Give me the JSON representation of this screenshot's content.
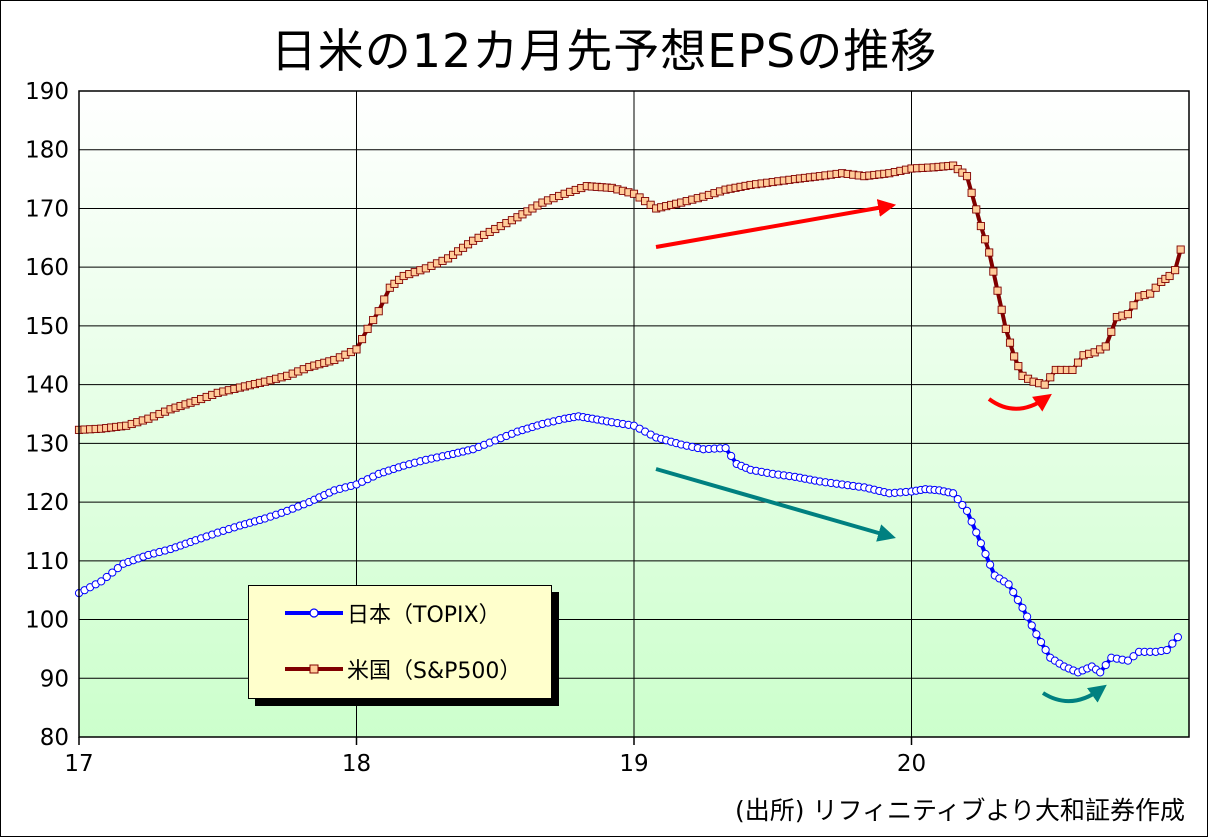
{
  "title": "日米の12カ月先予想EPSの推移",
  "source": "(出所) リフィニティブより大和証券作成",
  "colors": {
    "japan": "#0000ff",
    "us": "#800000",
    "us_marker_fill": "#ffcc99",
    "japan_marker_fill": "#ffffff",
    "plot_top": "#ffffff",
    "plot_bottom": "#ccffcc",
    "legend_bg": "#ffffcc",
    "arrow_red": "#ff0000",
    "arrow_teal": "#008080"
  },
  "chart_data": {
    "type": "line",
    "title": "日米の12カ月先予想EPSの推移",
    "xlabel": "",
    "ylabel": "",
    "x_ticks": [
      "17",
      "18",
      "19",
      "20"
    ],
    "x_range": [
      2017.0,
      2021.0
    ],
    "ylim": [
      80,
      190
    ],
    "y_ticks": [
      80,
      90,
      100,
      110,
      120,
      130,
      140,
      150,
      160,
      170,
      180,
      190
    ],
    "grid": "both",
    "legend_position": "bottom-left",
    "series": [
      {
        "name": "日本（TOPIX）",
        "points": [
          [
            2017.0,
            104.5
          ],
          [
            2017.08,
            106.5
          ],
          [
            2017.16,
            109.5
          ],
          [
            2017.25,
            111.0
          ],
          [
            2017.33,
            112.0
          ],
          [
            2017.42,
            113.5
          ],
          [
            2017.5,
            114.8
          ],
          [
            2017.58,
            116.0
          ],
          [
            2017.67,
            117.2
          ],
          [
            2017.75,
            118.5
          ],
          [
            2017.83,
            120.0
          ],
          [
            2017.92,
            122.0
          ],
          [
            2018.0,
            123.0
          ],
          [
            2018.08,
            124.8
          ],
          [
            2018.17,
            126.2
          ],
          [
            2018.25,
            127.2
          ],
          [
            2018.33,
            128.0
          ],
          [
            2018.42,
            129.0
          ],
          [
            2018.5,
            130.5
          ],
          [
            2018.58,
            132.0
          ],
          [
            2018.67,
            133.3
          ],
          [
            2018.75,
            134.2
          ],
          [
            2018.8,
            134.6
          ],
          [
            2018.85,
            134.2
          ],
          [
            2018.92,
            133.6
          ],
          [
            2019.0,
            133.0
          ],
          [
            2019.08,
            131.0
          ],
          [
            2019.17,
            129.8
          ],
          [
            2019.25,
            129.0
          ],
          [
            2019.33,
            129.2
          ],
          [
            2019.37,
            126.5
          ],
          [
            2019.42,
            125.5
          ],
          [
            2019.5,
            124.8
          ],
          [
            2019.58,
            124.3
          ],
          [
            2019.67,
            123.5
          ],
          [
            2019.75,
            123.0
          ],
          [
            2019.83,
            122.5
          ],
          [
            2019.92,
            121.5
          ],
          [
            2020.0,
            121.8
          ],
          [
            2020.05,
            122.2
          ],
          [
            2020.1,
            122.0
          ],
          [
            2020.15,
            121.5
          ],
          [
            2020.2,
            118.5
          ],
          [
            2020.25,
            113.0
          ],
          [
            2020.3,
            107.5
          ],
          [
            2020.35,
            106.0
          ],
          [
            2020.4,
            102.0
          ],
          [
            2020.45,
            97.5
          ],
          [
            2020.5,
            93.5
          ],
          [
            2020.55,
            92.0
          ],
          [
            2020.6,
            91.0
          ],
          [
            2020.65,
            92.0
          ],
          [
            2020.68,
            91.0
          ],
          [
            2020.72,
            93.5
          ],
          [
            2020.78,
            93.0
          ],
          [
            2020.82,
            94.5
          ],
          [
            2020.88,
            94.5
          ],
          [
            2020.92,
            94.8
          ],
          [
            2020.96,
            97.0
          ]
        ]
      },
      {
        "name": "米国（S&P500）",
        "points": [
          [
            2017.0,
            132.3
          ],
          [
            2017.08,
            132.5
          ],
          [
            2017.17,
            133.0
          ],
          [
            2017.25,
            134.2
          ],
          [
            2017.33,
            135.8
          ],
          [
            2017.42,
            137.2
          ],
          [
            2017.5,
            138.6
          ],
          [
            2017.58,
            139.5
          ],
          [
            2017.67,
            140.5
          ],
          [
            2017.75,
            141.5
          ],
          [
            2017.83,
            143.0
          ],
          [
            2017.92,
            144.2
          ],
          [
            2018.0,
            146.0
          ],
          [
            2018.04,
            149.5
          ],
          [
            2018.08,
            152.5
          ],
          [
            2018.12,
            156.5
          ],
          [
            2018.17,
            158.5
          ],
          [
            2018.25,
            159.8
          ],
          [
            2018.33,
            161.5
          ],
          [
            2018.42,
            164.5
          ],
          [
            2018.5,
            166.5
          ],
          [
            2018.58,
            168.5
          ],
          [
            2018.67,
            171.0
          ],
          [
            2018.75,
            172.5
          ],
          [
            2018.83,
            173.8
          ],
          [
            2018.92,
            173.5
          ],
          [
            2019.0,
            172.5
          ],
          [
            2019.08,
            170.0
          ],
          [
            2019.17,
            171.0
          ],
          [
            2019.25,
            172.0
          ],
          [
            2019.33,
            173.2
          ],
          [
            2019.42,
            174.0
          ],
          [
            2019.5,
            174.5
          ],
          [
            2019.58,
            175.0
          ],
          [
            2019.67,
            175.5
          ],
          [
            2019.75,
            176.0
          ],
          [
            2019.83,
            175.5
          ],
          [
            2019.92,
            176.0
          ],
          [
            2020.0,
            176.8
          ],
          [
            2020.08,
            177.0
          ],
          [
            2020.15,
            177.3
          ],
          [
            2020.2,
            175.5
          ],
          [
            2020.25,
            167.0
          ],
          [
            2020.28,
            162.5
          ],
          [
            2020.31,
            156.0
          ],
          [
            2020.34,
            149.5
          ],
          [
            2020.37,
            144.8
          ],
          [
            2020.4,
            141.5
          ],
          [
            2020.44,
            140.5
          ],
          [
            2020.48,
            140.0
          ],
          [
            2020.52,
            142.5
          ],
          [
            2020.58,
            142.5
          ],
          [
            2020.62,
            145.0
          ],
          [
            2020.66,
            145.5
          ],
          [
            2020.7,
            146.5
          ],
          [
            2020.74,
            151.5
          ],
          [
            2020.78,
            152.0
          ],
          [
            2020.82,
            155.0
          ],
          [
            2020.86,
            155.5
          ],
          [
            2020.9,
            157.5
          ],
          [
            2020.93,
            158.5
          ],
          [
            2020.95,
            159.5
          ],
          [
            2020.97,
            163.0
          ]
        ]
      }
    ]
  },
  "legend": [
    {
      "label": "日本（TOPIX）"
    },
    {
      "label": "米国（S&P500）"
    }
  ]
}
